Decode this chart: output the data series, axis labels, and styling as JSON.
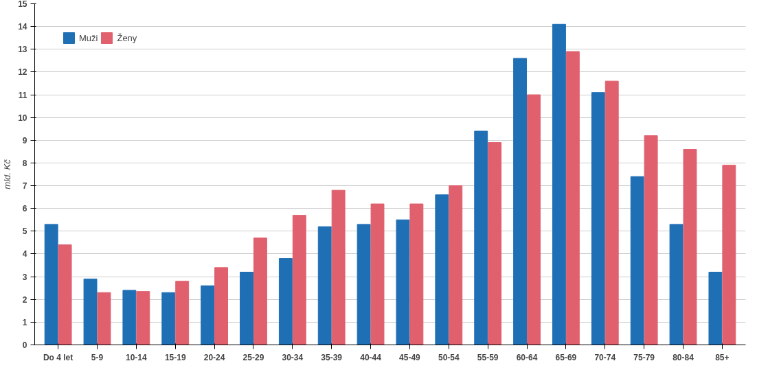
{
  "chart_data": {
    "type": "bar",
    "ylabel": "mld. Kč",
    "categories": [
      "Do 4 let",
      "5-9",
      "10-14",
      "15-19",
      "20-24",
      "25-29",
      "30-34",
      "35-39",
      "40-44",
      "45-49",
      "50-54",
      "55-59",
      "60-64",
      "65-69",
      "70-74",
      "75-79",
      "80-84",
      "85+"
    ],
    "series": [
      {
        "name": "Muži",
        "color": "#1f6fb5",
        "values": [
          5.3,
          2.9,
          2.4,
          2.3,
          2.6,
          3.2,
          3.8,
          5.2,
          5.3,
          5.5,
          6.6,
          9.4,
          12.6,
          14.1,
          11.1,
          7.4,
          5.3,
          3.2
        ]
      },
      {
        "name": "Ženy",
        "color": "#e0606e",
        "values": [
          4.4,
          2.3,
          2.35,
          2.8,
          3.4,
          4.7,
          5.7,
          6.8,
          6.2,
          6.2,
          7.0,
          8.9,
          11.0,
          12.9,
          11.6,
          9.2,
          8.6,
          7.9
        ]
      }
    ],
    "ylim": [
      0,
      15
    ],
    "yticks": [
      0,
      1,
      2,
      3,
      4,
      5,
      6,
      7,
      8,
      9,
      10,
      11,
      12,
      13,
      14,
      15
    ],
    "grid": "y",
    "legend": "top left"
  }
}
